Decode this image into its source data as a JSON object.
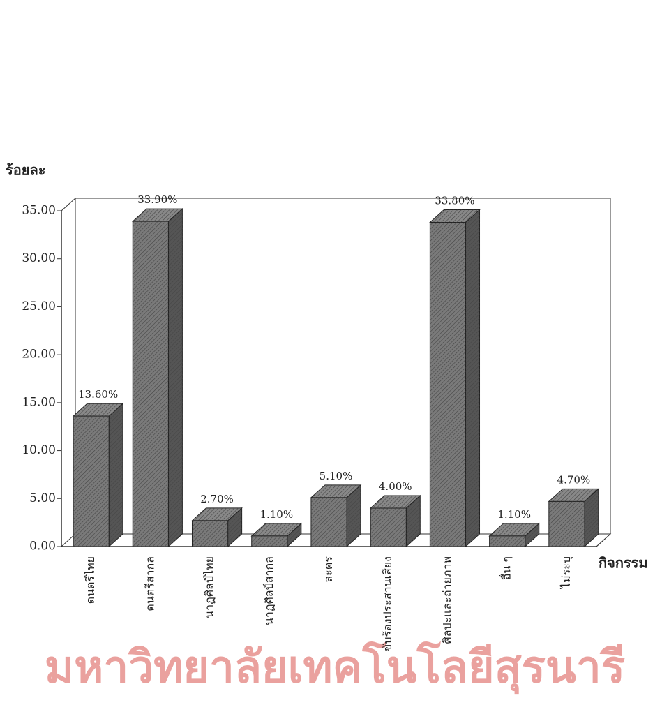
{
  "chart_data": {
    "type": "bar3d",
    "y_label": "ร้อยละ",
    "x_label": "กิจกรรม",
    "watermark": "มหาวิทยาลัยเทคโนโลยีสุรนารี",
    "categories": [
      "ดนตรีไทย",
      "ดนตรีสากล",
      "นาฏศิลป์ไทย",
      "นาฏศิลป์สากล",
      "ละคร",
      "ขับร้องประสานเสียง",
      "ศิลปะและถ่ายภาพ",
      "อื่น ๆ",
      "ไม่ระบุ"
    ],
    "values": [
      13.6,
      33.9,
      2.7,
      1.1,
      5.1,
      4.0,
      33.8,
      1.1,
      4.7
    ],
    "value_labels": [
      "13.60%",
      "33.90%",
      "2.70%",
      "1.10%",
      "5.10%",
      "4.00%",
      "33.80%",
      "1.10%",
      "4.70%"
    ],
    "color": "#7a7a7a",
    "ylim": [
      0,
      35
    ],
    "yticks": [
      {
        "value": 0,
        "label": "0.00"
      },
      {
        "value": 5,
        "label": "5.00"
      },
      {
        "value": 10,
        "label": "10.00"
      },
      {
        "value": 15,
        "label": "15.00"
      },
      {
        "value": 20,
        "label": "20.00"
      },
      {
        "value": 25,
        "label": "25.00"
      },
      {
        "value": 30,
        "label": "30.00"
      },
      {
        "value": 35,
        "label": "35.00"
      }
    ]
  }
}
